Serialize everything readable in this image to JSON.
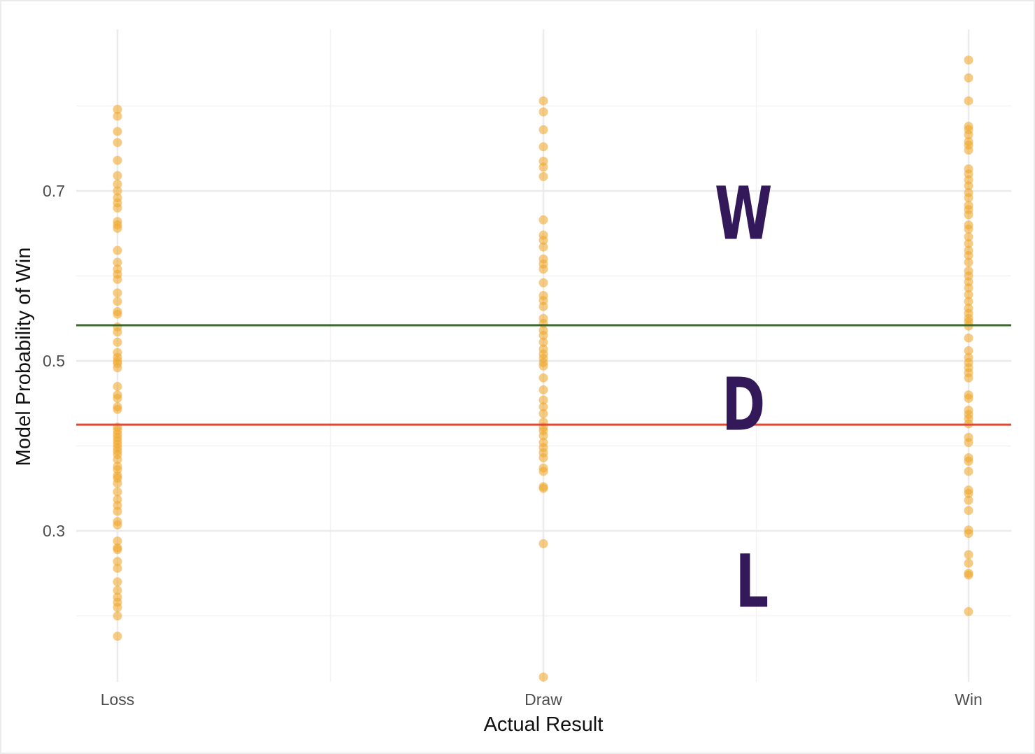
{
  "chart_data": {
    "type": "scatter",
    "categories": [
      "Loss",
      "Draw",
      "Win"
    ],
    "xlabel": "Actual Result",
    "ylabel": "Model Probability of Win",
    "ylim": [
      0.12,
      0.87
    ],
    "yticks": [
      0.3,
      0.5,
      0.7
    ],
    "ytick_labels": [
      "0.3",
      "0.5",
      "0.7"
    ],
    "grid": true,
    "point_color": "#f0a830",
    "series": [
      {
        "category": "Loss",
        "values": [
          0.796,
          0.788,
          0.77,
          0.757,
          0.736,
          0.718,
          0.708,
          0.7,
          0.692,
          0.686,
          0.68,
          0.664,
          0.66,
          0.656,
          0.63,
          0.616,
          0.608,
          0.602,
          0.596,
          0.58,
          0.57,
          0.558,
          0.555,
          0.54,
          0.534,
          0.522,
          0.51,
          0.504,
          0.5,
          0.497,
          0.492,
          0.47,
          0.46,
          0.456,
          0.446,
          0.443,
          0.422,
          0.418,
          0.414,
          0.41,
          0.406,
          0.402,
          0.398,
          0.394,
          0.39,
          0.384,
          0.376,
          0.372,
          0.365,
          0.362,
          0.356,
          0.346,
          0.337,
          0.33,
          0.323,
          0.311,
          0.307,
          0.288,
          0.28,
          0.278,
          0.264,
          0.256,
          0.24,
          0.23,
          0.222,
          0.216,
          0.21,
          0.2,
          0.176
        ]
      },
      {
        "category": "Draw",
        "values": [
          0.806,
          0.793,
          0.772,
          0.752,
          0.735,
          0.728,
          0.717,
          0.666,
          0.648,
          0.642,
          0.634,
          0.62,
          0.614,
          0.608,
          0.592,
          0.577,
          0.571,
          0.564,
          0.55,
          0.544,
          0.536,
          0.53,
          0.522,
          0.514,
          0.508,
          0.503,
          0.498,
          0.494,
          0.48,
          0.466,
          0.454,
          0.446,
          0.438,
          0.428,
          0.422,
          0.418,
          0.412,
          0.404,
          0.398,
          0.392,
          0.386,
          0.374,
          0.37,
          0.352,
          0.35,
          0.285,
          0.128
        ]
      },
      {
        "category": "Win",
        "values": [
          0.854,
          0.833,
          0.806,
          0.776,
          0.772,
          0.766,
          0.758,
          0.754,
          0.748,
          0.726,
          0.72,
          0.713,
          0.706,
          0.698,
          0.692,
          0.683,
          0.678,
          0.672,
          0.66,
          0.655,
          0.646,
          0.638,
          0.63,
          0.624,
          0.616,
          0.606,
          0.6,
          0.593,
          0.586,
          0.578,
          0.57,
          0.562,
          0.556,
          0.55,
          0.546,
          0.541,
          0.527,
          0.512,
          0.504,
          0.498,
          0.492,
          0.486,
          0.48,
          0.46,
          0.456,
          0.442,
          0.437,
          0.432,
          0.426,
          0.41,
          0.404,
          0.386,
          0.382,
          0.37,
          0.348,
          0.344,
          0.336,
          0.324,
          0.301,
          0.297,
          0.272,
          0.262,
          0.25,
          0.248,
          0.205
        ]
      }
    ],
    "hlines": [
      {
        "y": 0.542,
        "color": "#3a6a2a"
      },
      {
        "y": 0.425,
        "color": "#dc4a33"
      }
    ],
    "annotations": [
      {
        "text": "W",
        "category_pos": 1.47,
        "y": 0.675
      },
      {
        "text": "D",
        "category_pos": 1.47,
        "y": 0.45
      },
      {
        "text": "L",
        "category_pos": 1.49,
        "y": 0.242
      }
    ]
  }
}
